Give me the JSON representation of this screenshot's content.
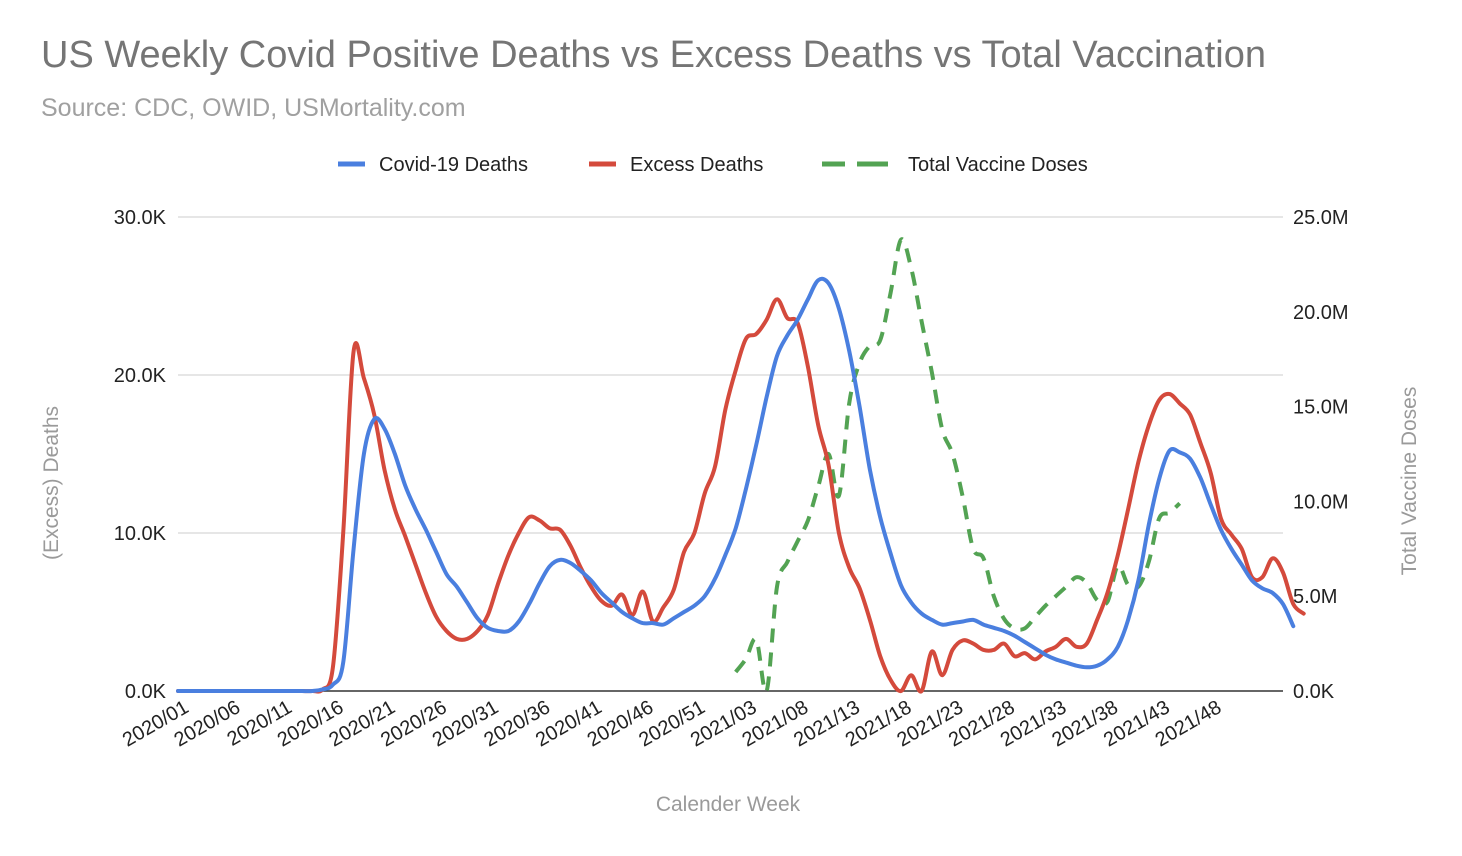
{
  "chart_data": {
    "type": "line",
    "title": "US Weekly Covid Positive Deaths vs Excess Deaths vs Total Vaccination",
    "subtitle": "Source: CDC, OWID, USMortality.com",
    "xlabel": "Calender Week",
    "ylabel_left": "(Excess) Deaths",
    "ylabel_right": "Total Vaccine Doses",
    "ylim_left": [
      0,
      30000
    ],
    "ylim_right": [
      0,
      25000000
    ],
    "yticks_left": [
      "0.0K",
      "10.0K",
      "20.0K",
      "30.0K"
    ],
    "yticks_right": [
      "0.0K",
      "5.0M",
      "10.0M",
      "15.0M",
      "20.0M",
      "25.0M"
    ],
    "xticks": [
      "2020/01",
      "2020/06",
      "2020/11",
      "2020/16",
      "2020/21",
      "2020/26",
      "2020/31",
      "2020/36",
      "2020/41",
      "2020/46",
      "2020/51",
      "2021/03",
      "2021/08",
      "2021/13",
      "2021/18",
      "2021/23",
      "2021/28",
      "2021/33",
      "2021/38",
      "2021/43",
      "2021/48"
    ],
    "legend_position": "top-center",
    "grid": true,
    "series": [
      {
        "name": "Covid-19 Deaths",
        "axis": "left",
        "color": "#4a7fdf",
        "style": "solid",
        "start_week_index": 0,
        "values": [
          0,
          0,
          0,
          0,
          0,
          0,
          0,
          0,
          0,
          0,
          0,
          0,
          0,
          0,
          100,
          400,
          1800,
          9000,
          15000,
          17200,
          16600,
          15000,
          13000,
          11500,
          10200,
          8800,
          7400,
          6600,
          5600,
          4600,
          4000,
          3800,
          3800,
          4400,
          5500,
          6800,
          7900,
          8300,
          8100,
          7600,
          7000,
          6200,
          5600,
          5000,
          4600,
          4300,
          4300,
          4200,
          4600,
          5000,
          5400,
          6000,
          7100,
          8600,
          10300,
          12800,
          15600,
          18600,
          21200,
          22500,
          23500,
          24800,
          26000,
          25800,
          24200,
          21500,
          18000,
          14000,
          11000,
          8700,
          6700,
          5600,
          4900,
          4500,
          4200,
          4300,
          4400,
          4500,
          4200,
          4000,
          3800,
          3500,
          3100,
          2700,
          2300,
          2000,
          1800,
          1600,
          1500,
          1600,
          2000,
          2800,
          4500,
          7000,
          10500,
          13400,
          15200,
          15100,
          14700,
          13500,
          11800,
          10200,
          9000,
          8000,
          7000,
          6500,
          6200,
          5500,
          4100
        ]
      },
      {
        "name": "Excess Deaths",
        "axis": "left",
        "color": "#d44a3c",
        "style": "solid",
        "start_week_index": 0,
        "values": [
          0,
          0,
          0,
          0,
          0,
          0,
          0,
          0,
          0,
          0,
          0,
          0,
          0,
          0,
          100,
          1500,
          10000,
          21500,
          19800,
          17500,
          14000,
          11500,
          9800,
          8000,
          6200,
          4700,
          3800,
          3300,
          3300,
          3800,
          4800,
          6800,
          8600,
          10000,
          11000,
          10800,
          10300,
          10200,
          9200,
          7800,
          6600,
          5700,
          5400,
          6100,
          4800,
          6300,
          4400,
          5300,
          6400,
          8800,
          10000,
          12500,
          14200,
          17800,
          20300,
          22300,
          22600,
          23500,
          24800,
          23600,
          23300,
          20500,
          16800,
          14300,
          10000,
          7800,
          6500,
          4500,
          2200,
          700,
          0,
          1000,
          0,
          2500,
          1000,
          2600,
          3200,
          3000,
          2600,
          2600,
          3000,
          2200,
          2400,
          2000,
          2500,
          2800,
          3300,
          2800,
          3000,
          4500,
          6200,
          8600,
          11500,
          14500,
          16800,
          18400,
          18800,
          18200,
          17500,
          15700,
          13800,
          10900,
          9900,
          9000,
          7200,
          7200,
          8400,
          7500,
          5500,
          4900
        ]
      },
      {
        "name": "Total Vaccine Doses",
        "axis": "right",
        "color": "#53a353",
        "style": "dashed",
        "start_week_index": 54,
        "values": [
          1000000,
          1700000,
          2700000,
          0,
          5500000,
          6800000,
          7900000,
          9000000,
          10800000,
          12500000,
          10300000,
          15200000,
          17300000,
          18200000,
          18500000,
          21000000,
          23800000,
          22300000,
          19500000,
          16800000,
          13800000,
          12500000,
          10200000,
          7500000,
          7000000,
          5000000,
          3800000,
          3300000,
          3300000,
          3900000,
          4500000,
          5000000,
          5500000,
          6000000,
          5700000,
          4800000,
          4700000,
          6600000,
          5600000,
          5500000,
          6800000,
          9100000,
          9400000,
          9900000
        ]
      }
    ]
  }
}
